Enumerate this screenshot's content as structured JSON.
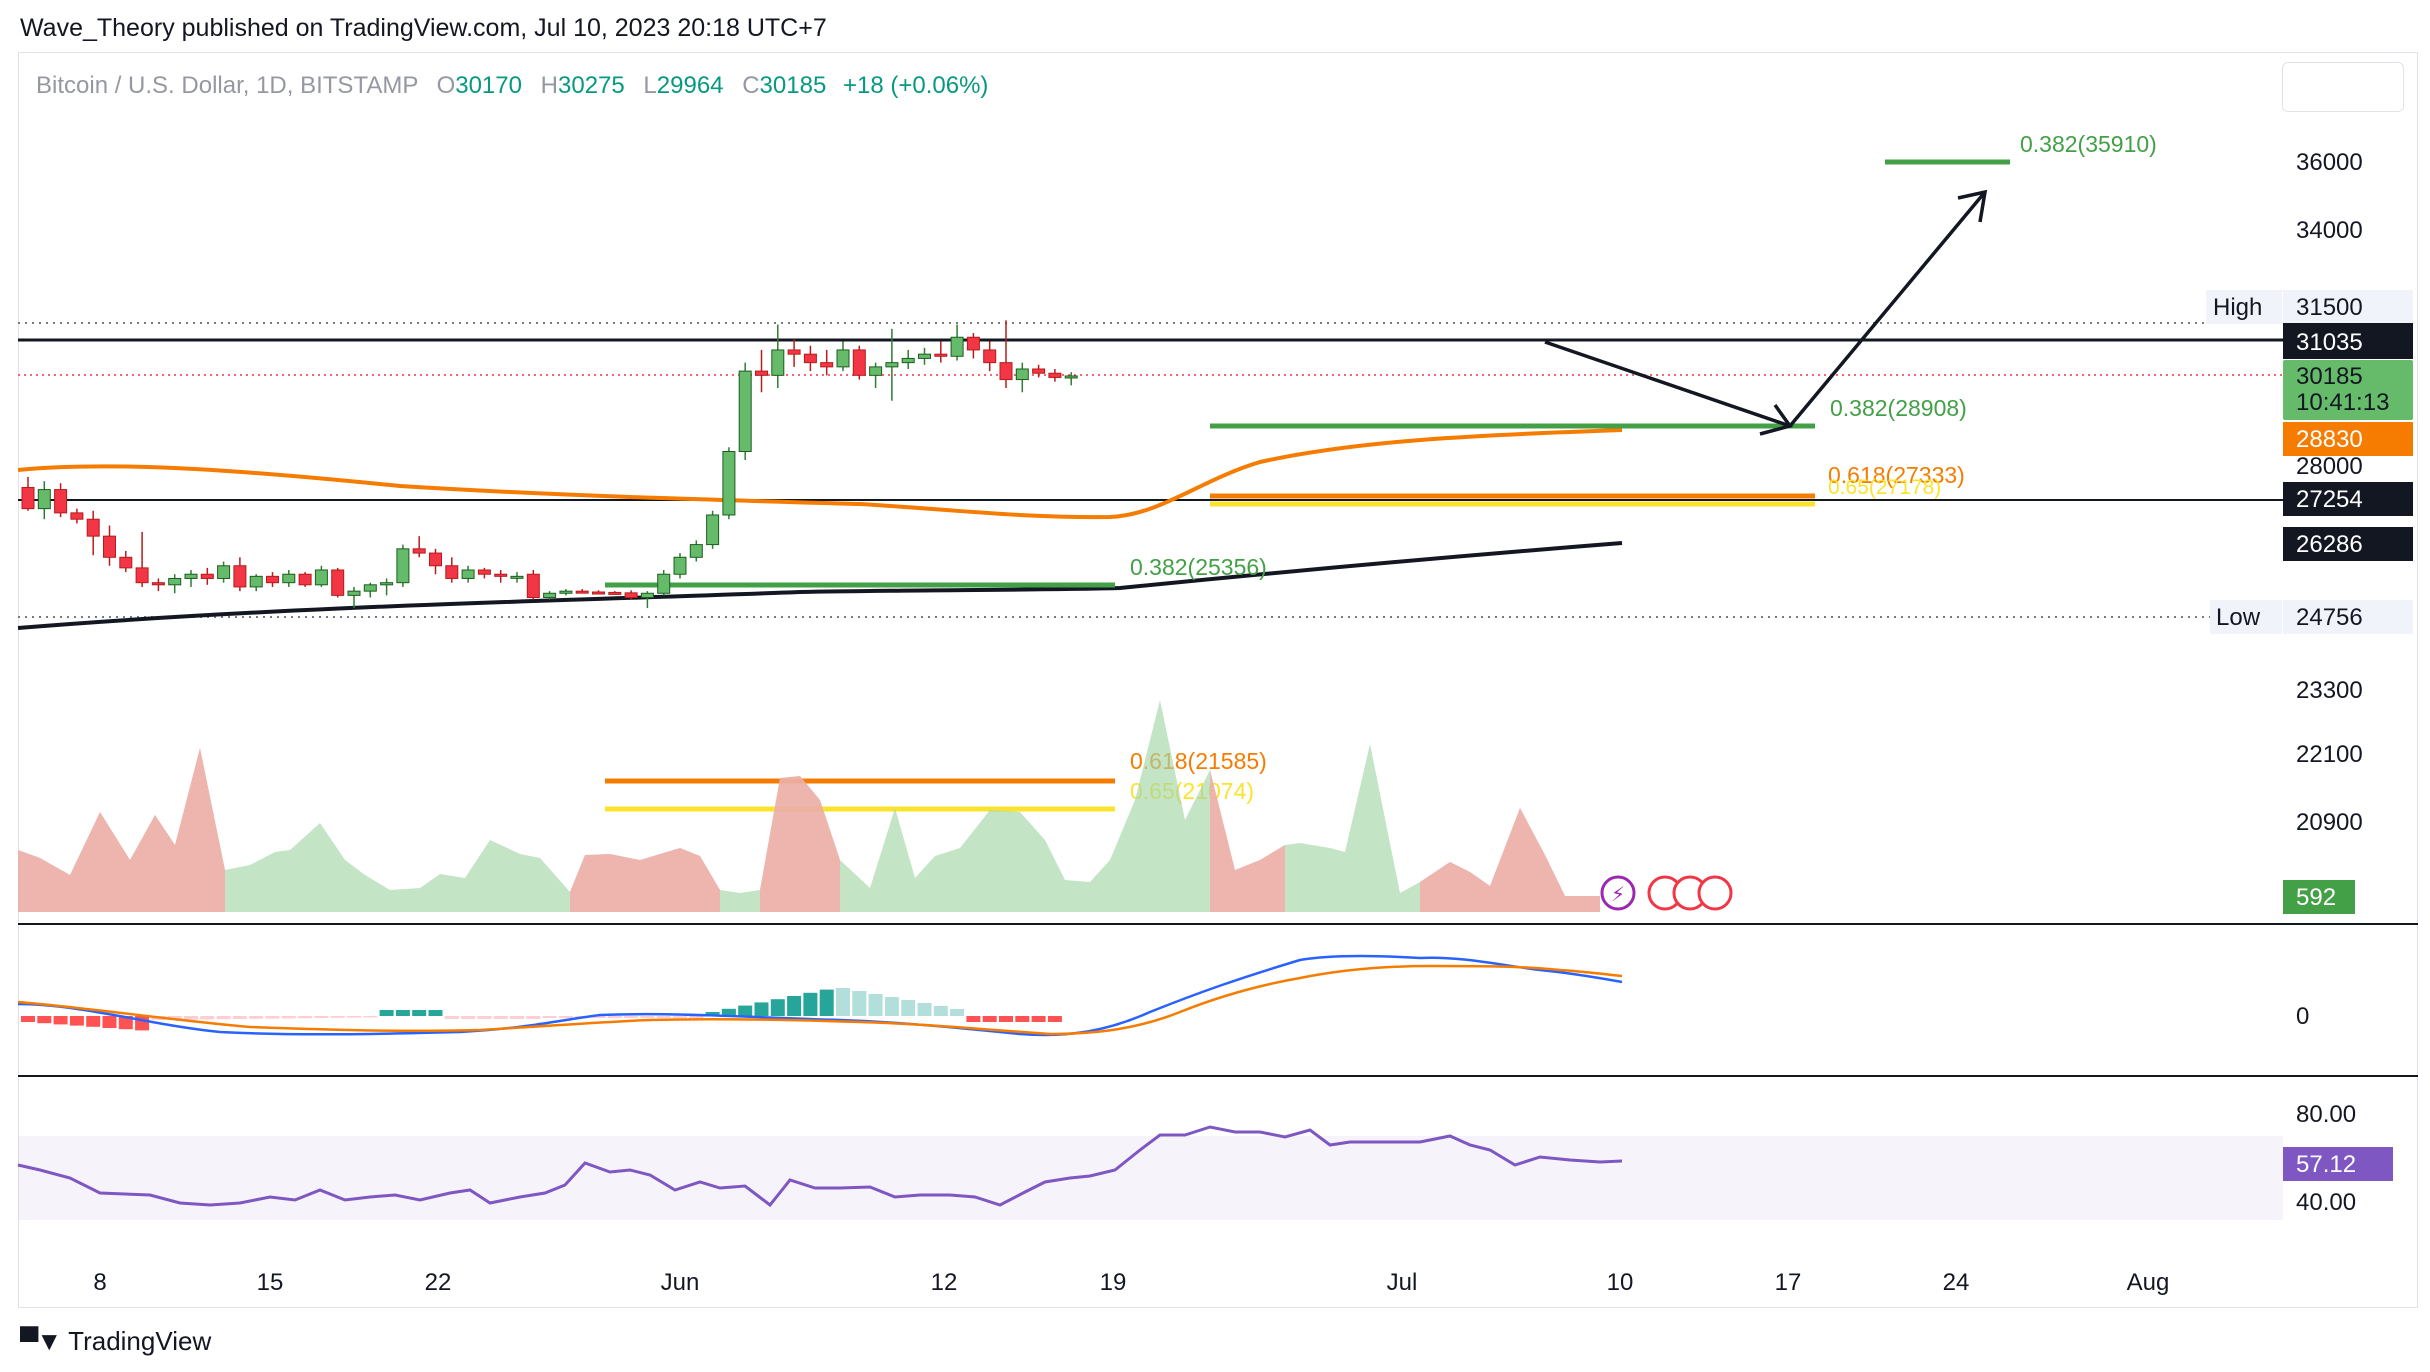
{
  "header": {
    "publisher_line": "Wave_Theory published on TradingView.com, Jul 10, 2023 20:18 UTC+7"
  },
  "legend": {
    "symbol": "Bitcoin / U.S. Dollar, 1D, BITSTAMP",
    "o_label": "O",
    "o_value": "30170",
    "h_label": "H",
    "h_value": "30275",
    "l_label": "L",
    "l_value": "29964",
    "c_label": "C",
    "c_value": "30185",
    "change": "+18 (+0.06%)"
  },
  "footer": {
    "brand": "TradingView"
  },
  "chart_data": {
    "type": "candlestick",
    "title": "Bitcoin / U.S. Dollar, 1D, BITSTAMP",
    "x_ticks": [
      "8",
      "15",
      "22",
      "Jun",
      "12",
      "19",
      "Jul",
      "10",
      "17",
      "24",
      "Aug"
    ],
    "price_axis_ticks": [
      "36000",
      "34000",
      "28000",
      "23300",
      "22100",
      "20900"
    ],
    "macd_axis_ticks": [
      "0"
    ],
    "rsi_axis_ticks": [
      "80.00",
      "40.00"
    ],
    "price_labels": {
      "high_label": "High",
      "high_value": "31500",
      "resistance": "31035",
      "last_price": "30185",
      "countdown": "10:41:13",
      "ema": "28830",
      "support": "27254",
      "ema200": "26286",
      "low_label": "Low",
      "low_value": "24756",
      "volume": "592",
      "rsi": "57.12"
    },
    "fib_labels": {
      "target": "0.382(35910)",
      "short_fib": "0.382(28908)",
      "golden_618": "0.618(27333)",
      "golden_65": "0.65(27178)",
      "low_fib": "0.382(25356)",
      "lower_618": "0.618(21585)",
      "lower_65": "0.65(21074)"
    },
    "levels": {
      "high": 31500,
      "resistance": 31035,
      "last": 30185,
      "low": 24756
    },
    "candles": [
      {
        "o": 27550,
        "h": 27800,
        "l": 27000,
        "c": 27050
      },
      {
        "o": 27050,
        "h": 27700,
        "l": 26800,
        "c": 27500
      },
      {
        "o": 27500,
        "h": 27650,
        "l": 26850,
        "c": 26950
      },
      {
        "o": 26950,
        "h": 27050,
        "l": 26700,
        "c": 26800
      },
      {
        "o": 26800,
        "h": 27000,
        "l": 25950,
        "c": 26400
      },
      {
        "o": 26400,
        "h": 26650,
        "l": 25700,
        "c": 25900
      },
      {
        "o": 25900,
        "h": 26050,
        "l": 25550,
        "c": 25650
      },
      {
        "o": 25650,
        "h": 26500,
        "l": 25200,
        "c": 25300
      },
      {
        "o": 25300,
        "h": 25400,
        "l": 25100,
        "c": 25250
      },
      {
        "o": 25250,
        "h": 25500,
        "l": 25050,
        "c": 25400
      },
      {
        "o": 25400,
        "h": 25600,
        "l": 25200,
        "c": 25500
      },
      {
        "o": 25500,
        "h": 25650,
        "l": 25250,
        "c": 25400
      },
      {
        "o": 25400,
        "h": 25800,
        "l": 25300,
        "c": 25700
      },
      {
        "o": 25700,
        "h": 25900,
        "l": 25100,
        "c": 25200
      },
      {
        "o": 25200,
        "h": 25500,
        "l": 25100,
        "c": 25450
      },
      {
        "o": 25450,
        "h": 25550,
        "l": 25200,
        "c": 25300
      },
      {
        "o": 25300,
        "h": 25600,
        "l": 25200,
        "c": 25500
      },
      {
        "o": 25500,
        "h": 25550,
        "l": 25200,
        "c": 25250
      },
      {
        "o": 25250,
        "h": 25700,
        "l": 25200,
        "c": 25600
      },
      {
        "o": 25600,
        "h": 25650,
        "l": 24950,
        "c": 25000
      },
      {
        "o": 25000,
        "h": 25200,
        "l": 24700,
        "c": 25100
      },
      {
        "o": 25100,
        "h": 25300,
        "l": 24950,
        "c": 25250
      },
      {
        "o": 25250,
        "h": 25400,
        "l": 25000,
        "c": 25300
      },
      {
        "o": 25300,
        "h": 26200,
        "l": 25200,
        "c": 26100
      },
      {
        "o": 26100,
        "h": 26400,
        "l": 25900,
        "c": 26000
      },
      {
        "o": 26000,
        "h": 26100,
        "l": 25500,
        "c": 25700
      },
      {
        "o": 25700,
        "h": 25900,
        "l": 25300,
        "c": 25400
      },
      {
        "o": 25400,
        "h": 25700,
        "l": 25300,
        "c": 25600
      },
      {
        "o": 25600,
        "h": 25650,
        "l": 25400,
        "c": 25500
      },
      {
        "o": 25500,
        "h": 25600,
        "l": 25300,
        "c": 25450
      },
      {
        "o": 25450,
        "h": 25550,
        "l": 25300,
        "c": 25450
      },
      {
        "o": 25500,
        "h": 25600,
        "l": 24900,
        "c": 24950
      },
      {
        "o": 24950,
        "h": 25100,
        "l": 24900,
        "c": 25050
      },
      {
        "o": 25050,
        "h": 25150,
        "l": 25000,
        "c": 25100
      },
      {
        "o": 25100,
        "h": 25150,
        "l": 25050,
        "c": 25080
      },
      {
        "o": 25080,
        "h": 25120,
        "l": 25030,
        "c": 25070
      },
      {
        "o": 25070,
        "h": 25100,
        "l": 25040,
        "c": 25060
      },
      {
        "o": 25060,
        "h": 25120,
        "l": 24900,
        "c": 24950
      },
      {
        "o": 24950,
        "h": 25100,
        "l": 24700,
        "c": 25050
      },
      {
        "o": 25050,
        "h": 25600,
        "l": 25000,
        "c": 25500
      },
      {
        "o": 25500,
        "h": 26000,
        "l": 25400,
        "c": 25900
      },
      {
        "o": 25900,
        "h": 26300,
        "l": 25800,
        "c": 26200
      },
      {
        "o": 26200,
        "h": 27000,
        "l": 26100,
        "c": 26900
      },
      {
        "o": 26900,
        "h": 28500,
        "l": 26800,
        "c": 28400
      },
      {
        "o": 28400,
        "h": 30500,
        "l": 28200,
        "c": 30300
      },
      {
        "o": 30300,
        "h": 30800,
        "l": 29800,
        "c": 30200
      },
      {
        "o": 30200,
        "h": 31400,
        "l": 29900,
        "c": 30800
      },
      {
        "o": 30800,
        "h": 31050,
        "l": 30400,
        "c": 30700
      },
      {
        "o": 30700,
        "h": 30900,
        "l": 30300,
        "c": 30500
      },
      {
        "o": 30500,
        "h": 30800,
        "l": 30200,
        "c": 30400
      },
      {
        "o": 30400,
        "h": 31000,
        "l": 30300,
        "c": 30800
      },
      {
        "o": 30800,
        "h": 30900,
        "l": 30100,
        "c": 30200
      },
      {
        "o": 30200,
        "h": 30500,
        "l": 29900,
        "c": 30400
      },
      {
        "o": 30400,
        "h": 31300,
        "l": 29600,
        "c": 30500
      },
      {
        "o": 30500,
        "h": 30800,
        "l": 30350,
        "c": 30600
      },
      {
        "o": 30600,
        "h": 30850,
        "l": 30450,
        "c": 30700
      },
      {
        "o": 30700,
        "h": 31000,
        "l": 30500,
        "c": 30650
      },
      {
        "o": 30650,
        "h": 31400,
        "l": 30550,
        "c": 31100
      },
      {
        "o": 31100,
        "h": 31200,
        "l": 30600,
        "c": 30800
      },
      {
        "o": 30800,
        "h": 31000,
        "l": 30300,
        "c": 30500
      },
      {
        "o": 30500,
        "h": 31500,
        "l": 29900,
        "c": 30100
      },
      {
        "o": 30100,
        "h": 30500,
        "l": 29800,
        "c": 30350
      },
      {
        "o": 30350,
        "h": 30450,
        "l": 30150,
        "c": 30250
      },
      {
        "o": 30250,
        "h": 30350,
        "l": 30050,
        "c": 30150
      },
      {
        "o": 30170,
        "h": 30275,
        "l": 29964,
        "c": 30185
      }
    ]
  }
}
